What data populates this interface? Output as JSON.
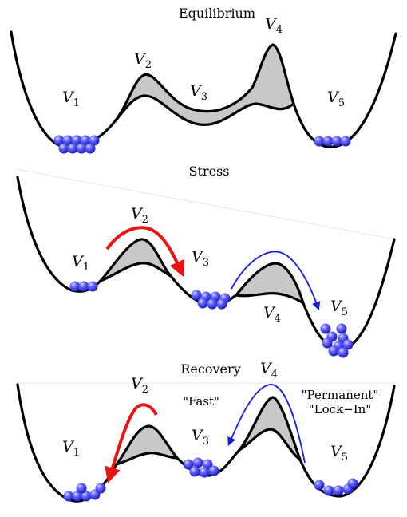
{
  "diagram": {
    "panels": [
      {
        "id": "equilibrium",
        "title": "Equilibrium",
        "labels": [
          "V1",
          "V2",
          "V3",
          "V4",
          "V5"
        ],
        "annotations": []
      },
      {
        "id": "stress",
        "title": "Stress",
        "labels": [
          "V1",
          "V2",
          "V3",
          "V4",
          "V5"
        ],
        "annotations": []
      },
      {
        "id": "recovery",
        "title": "Recovery",
        "labels": [
          "V1",
          "V2",
          "V3",
          "V4",
          "V5"
        ],
        "annotations": [
          "\"Fast\"",
          "\"Permanent\"",
          "\"Lock−In\""
        ]
      }
    ],
    "colors": {
      "well_curve": "#000000",
      "barrier_shade": "#c8c8c8",
      "particle": "#3a3aff",
      "fast_arrow": "#ee1111",
      "slow_arrow": "#1a1ad6"
    }
  }
}
